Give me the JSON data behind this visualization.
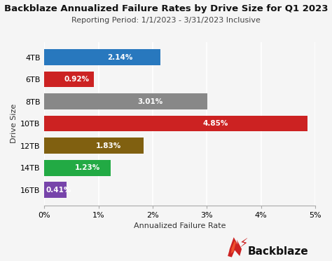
{
  "title": "Backblaze Annualized Failure Rates by Drive Size for Q1 2023",
  "subtitle": "Reporting Period: 1/1/2023 - 3/31/2023 Inclusive",
  "xlabel": "Annualized Failure Rate",
  "ylabel": "Drive Size",
  "categories": [
    "4TB",
    "6TB",
    "8TB",
    "10TB",
    "12TB",
    "14TB",
    "16TB"
  ],
  "values": [
    2.14,
    0.92,
    3.01,
    4.85,
    1.83,
    1.23,
    0.41
  ],
  "bar_colors": [
    "#2878BE",
    "#CC2222",
    "#888888",
    "#CC2222",
    "#806010",
    "#22AA44",
    "#7744AA"
  ],
  "value_labels": [
    "2.14%",
    "0.92%",
    "3.01%",
    "4.85%",
    "1.83%",
    "1.23%",
    "0.41%"
  ],
  "xlim": [
    0,
    5
  ],
  "xticks": [
    0,
    1,
    2,
    3,
    4,
    5
  ],
  "xtick_labels": [
    "0%",
    "1%",
    "2%",
    "3%",
    "4%",
    "5%"
  ],
  "background_color": "#f5f5f5",
  "plot_bg_color": "#f5f5f5",
  "grid_color": "#ffffff",
  "title_fontsize": 9.5,
  "subtitle_fontsize": 8,
  "label_fontsize": 8,
  "tick_fontsize": 8,
  "bar_height": 0.72,
  "logo_text": "Backblaze",
  "logo_fontsize": 11
}
